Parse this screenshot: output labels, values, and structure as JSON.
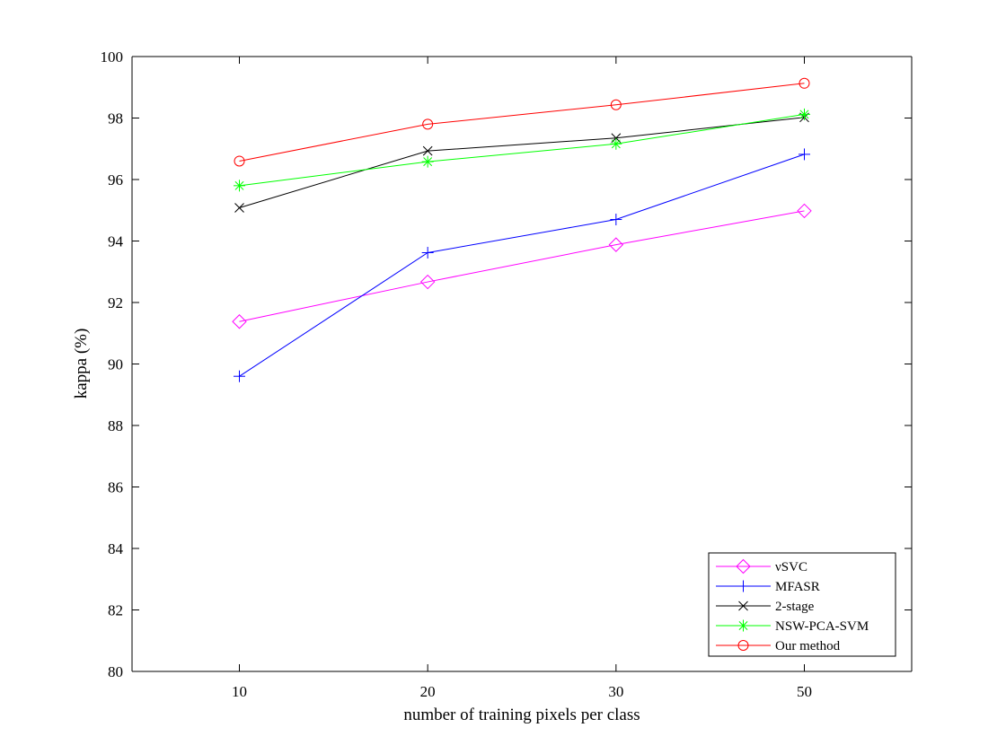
{
  "chart_data": {
    "type": "line",
    "title": "",
    "xlabel": "number of training pixels per class",
    "ylabel": "kappa (%)",
    "categories": [
      "10",
      "20",
      "30",
      "50"
    ],
    "xlim": [
      0.43,
      4.57
    ],
    "ylim": [
      80,
      100
    ],
    "yticks": [
      "80",
      "82",
      "84",
      "86",
      "88",
      "90",
      "92",
      "94",
      "96",
      "98",
      "100"
    ],
    "grid": false,
    "legend_position": "bottom-right",
    "series": [
      {
        "name": "νSVC",
        "color": "#ff00ff",
        "marker": "diamond",
        "values": [
          91.38,
          92.67,
          93.88,
          94.98
        ]
      },
      {
        "name": "MFASR",
        "color": "#0000ff",
        "marker": "plus",
        "values": [
          89.6,
          93.62,
          94.7,
          96.82
        ]
      },
      {
        "name": "2-stage",
        "color": "#000000",
        "marker": "x",
        "values": [
          95.08,
          96.93,
          97.35,
          98.02
        ]
      },
      {
        "name": "NSW-PCA-SVM",
        "color": "#00ff00",
        "marker": "star",
        "values": [
          95.8,
          96.58,
          97.16,
          98.12
        ]
      },
      {
        "name": "Our method",
        "color": "#ff0000",
        "marker": "circle",
        "values": [
          96.6,
          97.8,
          98.43,
          99.13
        ]
      }
    ]
  }
}
